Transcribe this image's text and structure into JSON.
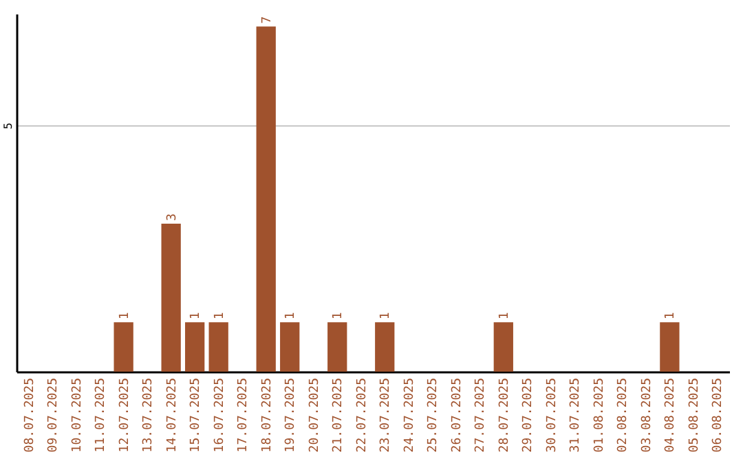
{
  "chart_data": {
    "type": "bar",
    "categories": [
      "08.07.2025",
      "09.07.2025",
      "10.07.2025",
      "11.07.2025",
      "12.07.2025",
      "13.07.2025",
      "14.07.2025",
      "15.07.2025",
      "16.07.2025",
      "17.07.2025",
      "18.07.2025",
      "19.07.2025",
      "20.07.2025",
      "21.07.2025",
      "22.07.2025",
      "23.07.2025",
      "24.07.2025",
      "25.07.2025",
      "26.07.2025",
      "27.07.2025",
      "28.07.2025",
      "29.07.2025",
      "30.07.2025",
      "31.07.2025",
      "01.08.2025",
      "02.08.2025",
      "03.08.2025",
      "04.08.2025",
      "05.08.2025",
      "06.08.2025"
    ],
    "values": [
      0,
      0,
      0,
      0,
      1,
      0,
      3,
      1,
      1,
      0,
      7,
      1,
      0,
      1,
      0,
      1,
      0,
      0,
      0,
      0,
      1,
      0,
      0,
      0,
      0,
      0,
      0,
      1,
      0,
      0
    ],
    "value_labels": [
      null,
      null,
      null,
      null,
      "1",
      null,
      "3",
      "1",
      "1",
      null,
      "7",
      "1",
      null,
      "1",
      null,
      "1",
      null,
      null,
      null,
      null,
      "1",
      null,
      null,
      null,
      null,
      null,
      null,
      "1",
      null,
      null
    ],
    "color": "#a0522d",
    "ylim": [
      0,
      7.26
    ],
    "yticks": [
      5
    ],
    "grid": "y"
  }
}
